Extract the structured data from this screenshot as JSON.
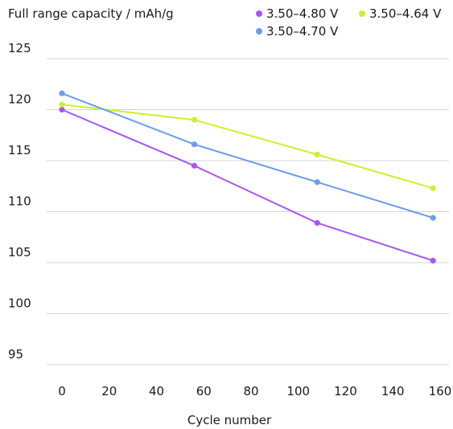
{
  "chart_data": {
    "type": "line",
    "ylabel": "Full range capacity / mAh/g",
    "xlabel": "Cycle number",
    "xlim": [
      -5,
      163
    ],
    "ylim": [
      94,
      126
    ],
    "xticks": [
      0,
      20,
      40,
      60,
      80,
      100,
      120,
      140,
      160
    ],
    "yticks": [
      95,
      100,
      105,
      110,
      115,
      120,
      125
    ],
    "grid": "horizontal",
    "legend": "top-right",
    "series": [
      {
        "name": "3.50–4.80 V",
        "color": "#a855f7",
        "x": [
          0,
          56,
          108,
          157
        ],
        "y": [
          120.0,
          114.5,
          108.9,
          105.2
        ]
      },
      {
        "name": "3.50–4.64 V",
        "color": "#ccf22a",
        "x": [
          0,
          56,
          108,
          157
        ],
        "y": [
          120.5,
          119.0,
          115.6,
          112.3
        ]
      },
      {
        "name": "3.50–4.70 V",
        "color": "#6b9cf2",
        "x": [
          0,
          56,
          108,
          157
        ],
        "y": [
          121.6,
          116.6,
          112.9,
          109.4
        ]
      }
    ]
  }
}
